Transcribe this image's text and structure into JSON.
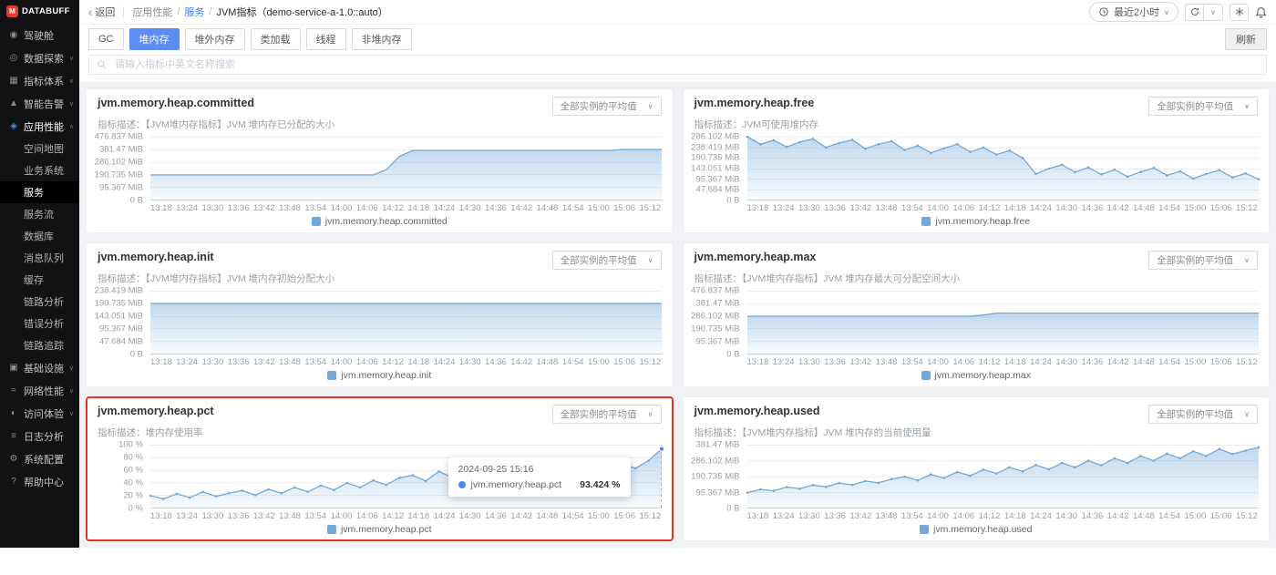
{
  "brand": {
    "name": "DATABUFF"
  },
  "sidebar": {
    "items": [
      {
        "id": "overview",
        "label": "驾驶舱",
        "icon": "dashboard-icon"
      },
      {
        "id": "data-explore",
        "label": "数据探索",
        "icon": "explore-icon",
        "expand": true
      },
      {
        "id": "metric-system",
        "label": "指标体系",
        "icon": "metrics-icon",
        "expand": true
      },
      {
        "id": "smart-alert",
        "label": "智能告警",
        "icon": "alert-icon",
        "expand": true
      },
      {
        "id": "apm",
        "label": "应用性能",
        "icon": "apm-icon",
        "expand": true,
        "open": true,
        "active": true,
        "active_child": "service",
        "children": [
          {
            "id": "space-map",
            "label": "空间地图"
          },
          {
            "id": "business-system",
            "label": "业务系统"
          },
          {
            "id": "service",
            "label": "服务"
          },
          {
            "id": "service-flow",
            "label": "服务流"
          },
          {
            "id": "database",
            "label": "数据库"
          },
          {
            "id": "message-queue",
            "label": "消息队列"
          },
          {
            "id": "cache",
            "label": "缓存"
          },
          {
            "id": "trace-analysis",
            "label": "链路分析"
          },
          {
            "id": "error-analysis",
            "label": "错误分析"
          },
          {
            "id": "trace",
            "label": "链路追踪"
          }
        ]
      },
      {
        "id": "infrastructure",
        "label": "基础设施",
        "icon": "infra-icon",
        "expand": true
      },
      {
        "id": "network",
        "label": "网络性能",
        "icon": "network-icon",
        "expand": true
      },
      {
        "id": "experience",
        "label": "访问体验",
        "icon": "experience-icon",
        "expand": true
      },
      {
        "id": "logs",
        "label": "日志分析",
        "icon": "logs-icon"
      },
      {
        "id": "config",
        "label": "系统配置",
        "icon": "gear-icon"
      },
      {
        "id": "help",
        "label": "帮助中心",
        "icon": "help-icon"
      }
    ]
  },
  "header": {
    "back": "返回",
    "breadcrumb": [
      {
        "label": "应用性能",
        "type": "text"
      },
      {
        "label": "服务",
        "type": "link"
      },
      {
        "label": "JVM指标（demo-service-a-1.0::auto）",
        "type": "current"
      }
    ],
    "time_range": "最近2小时"
  },
  "toolbar": {
    "tabs": [
      "GC",
      "堆内存",
      "堆外内存",
      "类加载",
      "线程",
      "非堆内存"
    ],
    "active_tab": "堆内存",
    "refresh_label": "刷新"
  },
  "search": {
    "placeholder": "请输入指标中英文名称搜索"
  },
  "colors": {
    "accent": "#5c8df6",
    "line": "#73a9d8",
    "highlight": "#e8311f"
  },
  "chart_data": [
    {
      "id": "heap-committed",
      "type": "area",
      "title": "jvm.memory.heap.committed",
      "description": "指标描述：【JVM堆内存指标】JVM 堆内存已分配的大小",
      "selector": "全部实例的平均值",
      "legend": "jvm.memory.heap.committed",
      "color": "#73a9d8",
      "dots": false,
      "y_ticks": [
        "476.837 MiB",
        "381.47 MiB",
        "286.102 MiB",
        "190.735 MiB",
        "95.367 MiB",
        "0 B"
      ],
      "y_max": 476.837,
      "x": [
        "13:18",
        "13:24",
        "13:30",
        "13:36",
        "13:42",
        "13:48",
        "13:54",
        "14:00",
        "14:06",
        "14:12",
        "14:18",
        "14:24",
        "14:30",
        "14:36",
        "14:42",
        "14:48",
        "14:54",
        "15:00",
        "15:06",
        "15:12"
      ],
      "values": [
        190.7,
        190.7,
        190.7,
        190.7,
        190.7,
        190.7,
        190.7,
        190.7,
        190.7,
        190.7,
        190.7,
        190.7,
        190.7,
        190.7,
        190.7,
        190.7,
        190.7,
        190.7,
        230,
        330,
        374,
        374,
        374,
        374,
        374,
        374,
        374,
        374,
        374,
        374,
        374,
        374,
        374,
        374,
        374,
        374,
        381.5,
        381.5,
        381.5,
        381.5
      ]
    },
    {
      "id": "heap-free",
      "type": "area",
      "title": "jvm.memory.heap.free",
      "description": "指标描述：JVM可使用堆内存",
      "selector": "全部实例的平均值",
      "legend": "jvm.memory.heap.free",
      "color": "#73a9d8",
      "dots": true,
      "y_ticks": [
        "286.102 MiB",
        "238.419 MiB",
        "190.735 MiB",
        "143.051 MiB",
        "95.367 MiB",
        "47.684 MiB",
        "0 B"
      ],
      "y_max": 286.102,
      "x": [
        "13:18",
        "13:24",
        "13:30",
        "13:36",
        "13:42",
        "13:48",
        "13:54",
        "14:00",
        "14:06",
        "14:12",
        "14:18",
        "14:24",
        "14:30",
        "14:36",
        "14:42",
        "14:48",
        "14:54",
        "15:00",
        "15:06",
        "15:12"
      ],
      "values": [
        286,
        252,
        270,
        240,
        262,
        276,
        238,
        258,
        272,
        232,
        252,
        266,
        226,
        246,
        214,
        234,
        252,
        218,
        238,
        206,
        224,
        190,
        119,
        143,
        160,
        127,
        148,
        117,
        138,
        107,
        128,
        146,
        112,
        131,
        98,
        119,
        136,
        103,
        122,
        95
      ]
    },
    {
      "id": "heap-init",
      "type": "area",
      "title": "jvm.memory.heap.init",
      "description": "指标描述：【JVM堆内存指标】JVM 堆内存初始分配大小",
      "selector": "全部实例的平均值",
      "legend": "jvm.memory.heap.init",
      "color": "#73a9d8",
      "dots": false,
      "y_ticks": [
        "238.419 MiB",
        "190.735 MiB",
        "143.051 MiB",
        "95.367 MiB",
        "47.684 MiB",
        "0 B"
      ],
      "y_max": 238.419,
      "x": [
        "13:18",
        "13:24",
        "13:30",
        "13:36",
        "13:42",
        "13:48",
        "13:54",
        "14:00",
        "14:06",
        "14:12",
        "14:18",
        "14:24",
        "14:30",
        "14:36",
        "14:42",
        "14:48",
        "14:54",
        "15:00",
        "15:06",
        "15:12"
      ],
      "values": [
        190.735,
        190.735,
        190.735,
        190.735,
        190.735,
        190.735,
        190.735,
        190.735,
        190.735,
        190.735,
        190.735,
        190.735,
        190.735,
        190.735,
        190.735,
        190.735,
        190.735,
        190.735,
        190.735,
        190.735,
        190.735,
        190.735,
        190.735,
        190.735,
        190.735,
        190.735,
        190.735,
        190.735,
        190.735,
        190.735,
        190.735,
        190.735,
        190.735,
        190.735,
        190.735,
        190.735,
        190.735,
        190.735,
        190.735,
        190.735
      ]
    },
    {
      "id": "heap-max",
      "type": "area",
      "title": "jvm.memory.heap.max",
      "description": "指标描述：【JVM堆内存指标】JVM 堆内存最大可分配空间大小",
      "selector": "全部实例的平均值",
      "legend": "jvm.memory.heap.max",
      "color": "#73a9d8",
      "dots": false,
      "y_ticks": [
        "476.837 MiB",
        "381.47 MiB",
        "286.102 MiB",
        "190.735 MiB",
        "95.367 MiB",
        "0 B"
      ],
      "y_max": 476.837,
      "x": [
        "13:18",
        "13:24",
        "13:30",
        "13:36",
        "13:42",
        "13:48",
        "13:54",
        "14:00",
        "14:06",
        "14:12",
        "14:18",
        "14:24",
        "14:30",
        "14:36",
        "14:42",
        "14:48",
        "14:54",
        "15:00",
        "15:06",
        "15:12"
      ],
      "values": [
        286.1,
        286.1,
        286.1,
        286.1,
        286.1,
        286.1,
        286.1,
        286.1,
        286.1,
        286.1,
        286.1,
        286.1,
        286.1,
        286.1,
        286.1,
        286.1,
        286.1,
        286.1,
        295,
        309.1,
        309.1,
        309.1,
        309.1,
        309.1,
        309.1,
        309.1,
        309.1,
        309.1,
        309.1,
        309.1,
        309.1,
        309.1,
        309.1,
        309.1,
        309.1,
        309.1,
        309.1,
        309.1,
        309.1,
        309.1
      ]
    },
    {
      "id": "heap-pct",
      "type": "area",
      "title": "jvm.memory.heap.pct",
      "description": "指标描述：堆内存使用率",
      "selector": "全部实例的平均值",
      "legend": "jvm.memory.heap.pct",
      "color": "#73a9d8",
      "dots": true,
      "highlight": true,
      "y_ticks": [
        "100 %",
        "80 %",
        "60 %",
        "40 %",
        "20 %",
        "0 %"
      ],
      "y_max": 100,
      "x": [
        "13:18",
        "13:24",
        "13:30",
        "13:36",
        "13:42",
        "13:48",
        "13:54",
        "14:00",
        "14:06",
        "14:12",
        "14:18",
        "14:24",
        "14:30",
        "14:36",
        "14:42",
        "14:48",
        "14:54",
        "15:00",
        "15:06",
        "15:12"
      ],
      "values": [
        20,
        15,
        23,
        17,
        26,
        19,
        24,
        28,
        21,
        30,
        24,
        33,
        26,
        36,
        29,
        40,
        33,
        44,
        37,
        48,
        52,
        43,
        58,
        49,
        64,
        54,
        68,
        57,
        72,
        61,
        66,
        57,
        70,
        62,
        74,
        66,
        70,
        63,
        75,
        93.424
      ],
      "tooltip": {
        "time": "2024-09-25 15:16",
        "series": "jvm.memory.heap.pct",
        "value": "93.424 %"
      }
    },
    {
      "id": "heap-used",
      "type": "area",
      "title": "jvm.memory.heap.used",
      "description": "指标描述：【JVM堆内存指标】JVM 堆内存的当前使用量",
      "selector": "全部实例的平均值",
      "legend": "jvm.memory.heap.used",
      "color": "#73a9d8",
      "dots": true,
      "y_ticks": [
        "381.47 MiB",
        "286.102 MiB",
        "190.735 MiB",
        "95.367 MiB",
        "0 B"
      ],
      "y_max": 381.47,
      "x": [
        "13:18",
        "13:24",
        "13:30",
        "13:36",
        "13:42",
        "13:48",
        "13:54",
        "14:00",
        "14:06",
        "14:12",
        "14:18",
        "14:24",
        "14:30",
        "14:36",
        "14:42",
        "14:48",
        "14:54",
        "15:00",
        "15:06",
        "15:12"
      ],
      "values": [
        95,
        114,
        105,
        128,
        118,
        140,
        129,
        152,
        141,
        164,
        153,
        176,
        190,
        168,
        204,
        182,
        218,
        196,
        232,
        209,
        246,
        222,
        260,
        234,
        272,
        246,
        286,
        258,
        300,
        272,
        314,
        286,
        328,
        300,
        342,
        314,
        356,
        326,
        346,
        366
      ]
    }
  ]
}
